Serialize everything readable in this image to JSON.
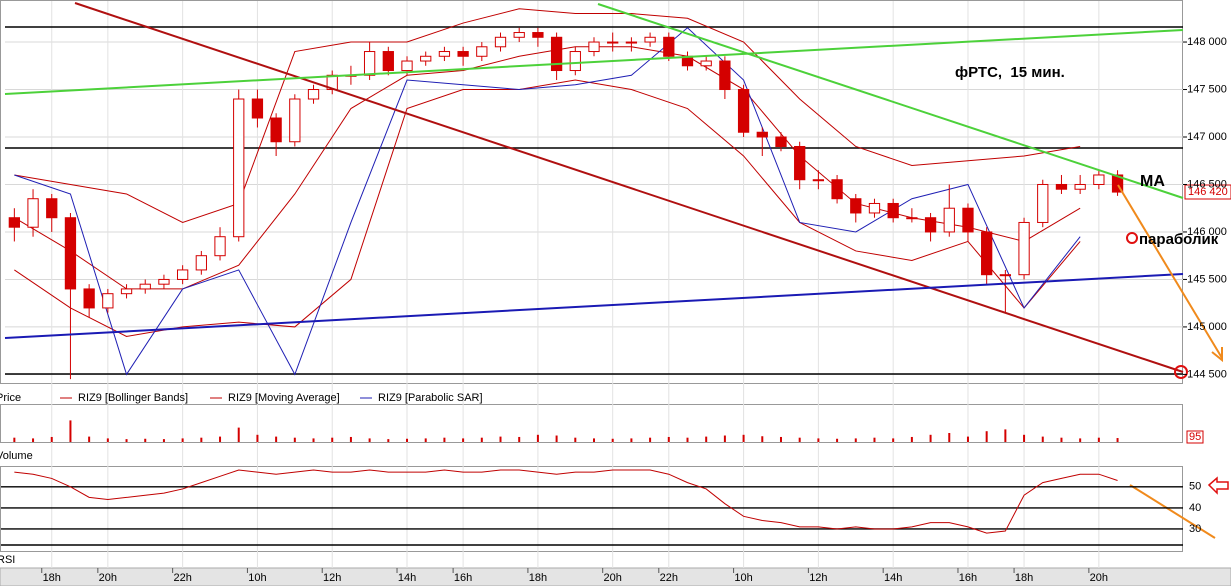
{
  "chart_data": {
    "type": "candlestick",
    "price_label": "Price",
    "categories": [
      null,
      null,
      "18h",
      null,
      null,
      "20h",
      null,
      null,
      null,
      "22h",
      null,
      null,
      null,
      "10h",
      null,
      null,
      null,
      "12h",
      null,
      null,
      null,
      "14h",
      null,
      null,
      "16h",
      null,
      null,
      null,
      "18h",
      null,
      null,
      null,
      "20h",
      null,
      null,
      "22h",
      null,
      null,
      null,
      "10h",
      null,
      null,
      null,
      "12h",
      null,
      null,
      null,
      "14h",
      null,
      null,
      null,
      "16h",
      null,
      null,
      "18h",
      null,
      null,
      null,
      "20h",
      null
    ],
    "open": [
      146150,
      146050,
      146350,
      146150,
      145400,
      145200,
      145350,
      145400,
      145450,
      145500,
      145600,
      145750,
      145950,
      147400,
      147200,
      146950,
      147400,
      147500,
      147650,
      147650,
      147900,
      147700,
      147800,
      147850,
      147900,
      147850,
      147950,
      148050,
      148100,
      148050,
      147700,
      147900,
      148000,
      148000,
      148000,
      148050,
      147850,
      147750,
      147800,
      147500,
      147050,
      147000,
      146900,
      146550,
      146550,
      146350,
      146200,
      146300,
      146150,
      146150,
      146000,
      146250,
      146000,
      145550,
      145550,
      146100,
      146500,
      146450,
      146500,
      146600
    ],
    "high": [
      146250,
      146450,
      146400,
      146200,
      145450,
      145400,
      145450,
      145500,
      145550,
      145650,
      145800,
      146050,
      147500,
      147500,
      147250,
      147450,
      147550,
      147700,
      147750,
      148000,
      147950,
      147850,
      147900,
      147950,
      147950,
      148000,
      148100,
      148150,
      148150,
      148100,
      147950,
      148050,
      148100,
      148050,
      148100,
      148100,
      147900,
      147850,
      147850,
      147550,
      147100,
      147050,
      146950,
      146650,
      146600,
      146400,
      146350,
      146350,
      146250,
      146200,
      146500,
      146300,
      146050,
      145600,
      146150,
      146550,
      146600,
      146600,
      146650,
      146650
    ],
    "low": [
      145900,
      145950,
      146000,
      144450,
      145100,
      145150,
      145300,
      145350,
      145400,
      145450,
      145550,
      145700,
      145900,
      147100,
      146800,
      146900,
      147350,
      147450,
      147550,
      147600,
      147650,
      147650,
      147750,
      147800,
      147750,
      147800,
      147900,
      148000,
      147950,
      147600,
      147650,
      147850,
      147900,
      147900,
      147950,
      147800,
      147700,
      147700,
      147400,
      147000,
      146800,
      146850,
      146450,
      146450,
      146300,
      146100,
      146150,
      146100,
      146100,
      145900,
      145950,
      145900,
      145450,
      145150,
      145500,
      146050,
      146400,
      146400,
      146450,
      146380
    ],
    "close": [
      146050,
      146350,
      146150,
      145400,
      145200,
      145350,
      145400,
      145450,
      145500,
      145600,
      145750,
      145950,
      147400,
      147200,
      146950,
      147400,
      147500,
      147650,
      147650,
      147900,
      147700,
      147800,
      147850,
      147900,
      147850,
      147950,
      148050,
      148100,
      148050,
      147700,
      147900,
      148000,
      148000,
      148000,
      148050,
      147850,
      147750,
      147800,
      147500,
      147050,
      147000,
      146900,
      146550,
      146550,
      146350,
      146200,
      146300,
      146150,
      146150,
      146000,
      146250,
      146000,
      145550,
      145550,
      146100,
      146500,
      146450,
      146500,
      146600,
      146420
    ],
    "last_label": "146 420",
    "color": "#d40000",
    "series": [
      {
        "name": "RIZ9 [Bollinger Bands]",
        "color": "#c00000",
        "x": [
          0,
          3,
          6,
          9,
          12,
          15,
          18,
          21,
          24,
          27,
          30,
          33,
          36,
          39,
          42,
          45,
          48,
          51,
          54,
          57
        ],
        "upper": [
          146600,
          146500,
          146400,
          146100,
          146300,
          147900,
          148000,
          148000,
          148200,
          148350,
          148300,
          148300,
          148250,
          148000,
          147400,
          146900,
          146700,
          146750,
          146800,
          146900
        ],
        "lower": [
          145600,
          145200,
          144900,
          145000,
          145050,
          145000,
          145500,
          147300,
          147500,
          147500,
          147600,
          147500,
          147300,
          146800,
          146100,
          145800,
          145700,
          145900,
          145200,
          145900
        ]
      },
      {
        "name": "RIZ9 [Moving Average]",
        "color": "#c00000",
        "x": [
          0,
          3,
          6,
          9,
          12,
          15,
          18,
          21,
          24,
          27,
          30,
          33,
          36,
          39,
          42,
          45,
          48,
          51,
          54,
          57
        ],
        "values": [
          146150,
          145800,
          145400,
          145400,
          145650,
          146400,
          147300,
          147650,
          147700,
          147850,
          147950,
          147950,
          147850,
          147500,
          146800,
          146300,
          146150,
          146050,
          145900,
          146250
        ]
      },
      {
        "name": "RIZ9 [Parabolic SAR]",
        "color": "#1f1fb4",
        "x": [
          0,
          3,
          6,
          9,
          12,
          15,
          18,
          21,
          24,
          27,
          30,
          33,
          36,
          39,
          42,
          45,
          48,
          51,
          54,
          57
        ],
        "values": [
          146600,
          146400,
          144500,
          145400,
          145600,
          144500,
          146100,
          147600,
          147550,
          147500,
          147550,
          147650,
          148150,
          147600,
          146100,
          146000,
          146350,
          146500,
          145200,
          145950
        ]
      }
    ],
    "ylim": [
      144420,
      148390
    ],
    "yticks": [
      {
        "value": 148000,
        "label": "148 000"
      },
      {
        "value": 147500,
        "label": "147 500"
      },
      {
        "value": 147000,
        "label": "147 000"
      },
      {
        "value": 146500,
        "label": "146 500"
      },
      {
        "value": 146000,
        "label": "146 000"
      },
      {
        "value": 145500,
        "label": "145 500"
      },
      {
        "value": 145000,
        "label": "145 000"
      },
      {
        "value": 144500,
        "label": "144 500"
      }
    ],
    "grid": true,
    "annotations": [
      "фРТС,  15 мин.",
      "MA",
      "параболик"
    ],
    "volume": {
      "label": "Volume",
      "tag": "95",
      "color": "#d40000",
      "ylim": [
        0,
        100
      ],
      "values": [
        12,
        10,
        14,
        60,
        15,
        10,
        8,
        9,
        8,
        10,
        12,
        15,
        40,
        20,
        15,
        12,
        10,
        12,
        14,
        10,
        8,
        9,
        10,
        12,
        10,
        12,
        15,
        14,
        20,
        18,
        12,
        10,
        9,
        10,
        12,
        14,
        12,
        15,
        18,
        20,
        16,
        14,
        12,
        10,
        9,
        10,
        12,
        10,
        14,
        20,
        25,
        15,
        30,
        35,
        20,
        15,
        12,
        10,
        12,
        11
      ]
    },
    "rsi": {
      "label": "RSI",
      "color": "#c00000",
      "ylim": [
        20,
        58
      ],
      "yticks": [
        50,
        40,
        30
      ],
      "values": [
        57,
        56,
        54,
        50,
        45,
        44,
        45,
        46,
        47,
        49,
        52,
        55,
        58,
        57,
        56,
        57,
        58,
        57,
        57,
        58,
        57,
        57,
        57,
        58,
        57,
        57,
        58,
        58,
        57,
        56,
        57,
        57,
        58,
        58,
        58,
        56,
        52,
        49,
        42,
        36,
        34,
        33,
        31,
        31,
        30,
        31,
        30,
        30,
        31,
        33,
        33,
        31,
        28,
        29,
        46,
        52,
        54,
        56,
        56,
        53
      ]
    }
  }
}
